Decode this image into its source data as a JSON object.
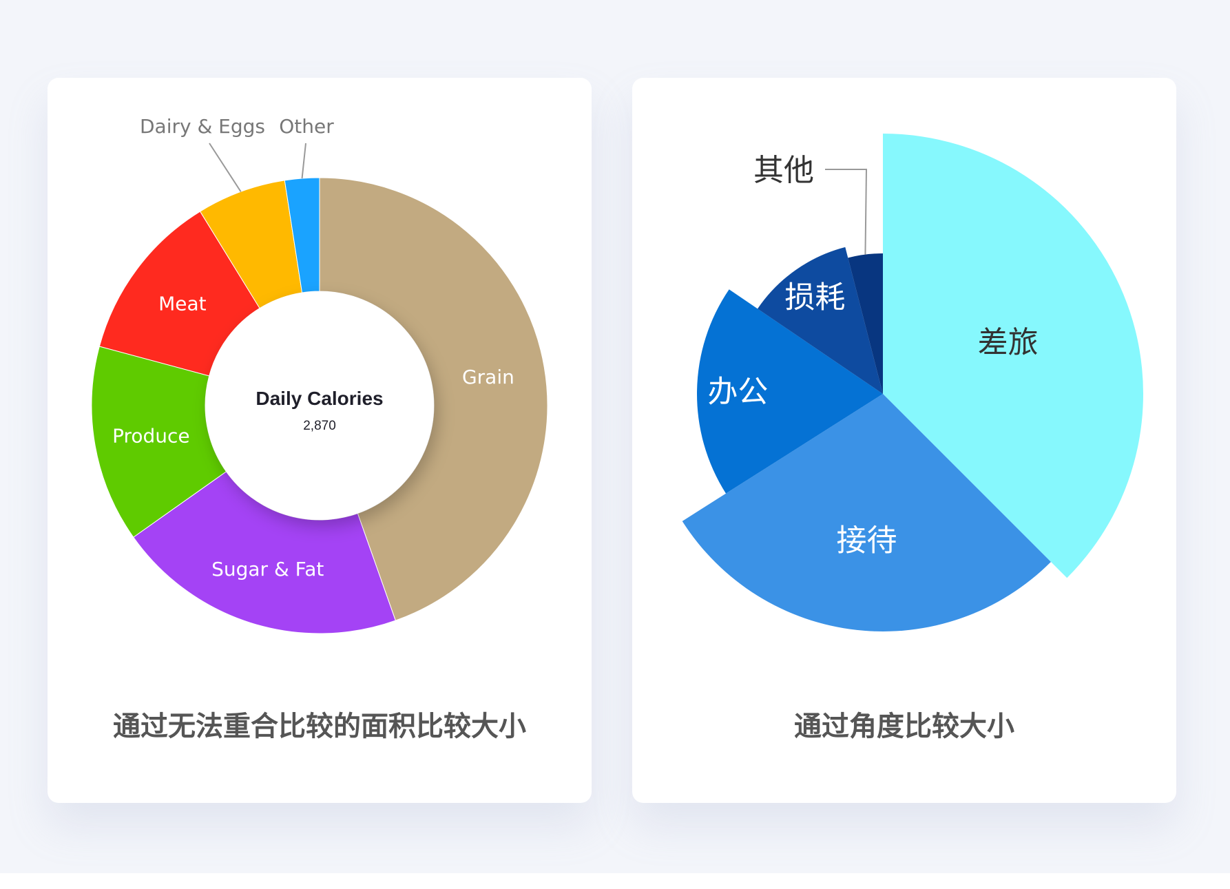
{
  "charts": [
    {
      "caption": "通过无法重合比较的面积比较大小",
      "center_title": "Daily Calories",
      "center_value": "2,870"
    },
    {
      "caption": "通过角度比较大小"
    }
  ],
  "chart_data": [
    {
      "type": "pie",
      "variant": "donut",
      "center_label": "Daily Calories",
      "center_value": "2,870",
      "categories": [
        "Grain",
        "Sugar & Fat",
        "Produce",
        "Meat",
        "Dairy & Eggs",
        "Other"
      ],
      "values": [
        43.7,
        20.2,
        13.7,
        11.8,
        6.2,
        2.4
      ],
      "colors": [
        "#c2aa81",
        "#a443f5",
        "#5fcb00",
        "#ff2a1f",
        "#ffb900",
        "#1aa3ff"
      ],
      "label_inside": [
        true,
        true,
        true,
        true,
        false,
        false
      ],
      "label_colors": [
        "#ffffff",
        "#ffffff",
        "#ffffff",
        "#ffffff",
        "#777777",
        "#777777"
      ]
    },
    {
      "type": "pie",
      "variant": "rose",
      "categories": [
        "差旅",
        "接待",
        "办公",
        "损耗",
        "其他"
      ],
      "values": [
        37.5,
        28.5,
        18.5,
        11.5,
        4.0
      ],
      "radii": [
        378,
        345,
        270,
        220,
        204
      ],
      "colors": [
        "#86f8fd",
        "#3b92e6",
        "#0572d4",
        "#0e4ba0",
        "#083680"
      ],
      "label_colors": [
        "#333333",
        "#ffffff",
        "#ffffff",
        "#ffffff",
        "#333333"
      ],
      "label_inside": [
        true,
        true,
        true,
        true,
        false
      ]
    }
  ]
}
